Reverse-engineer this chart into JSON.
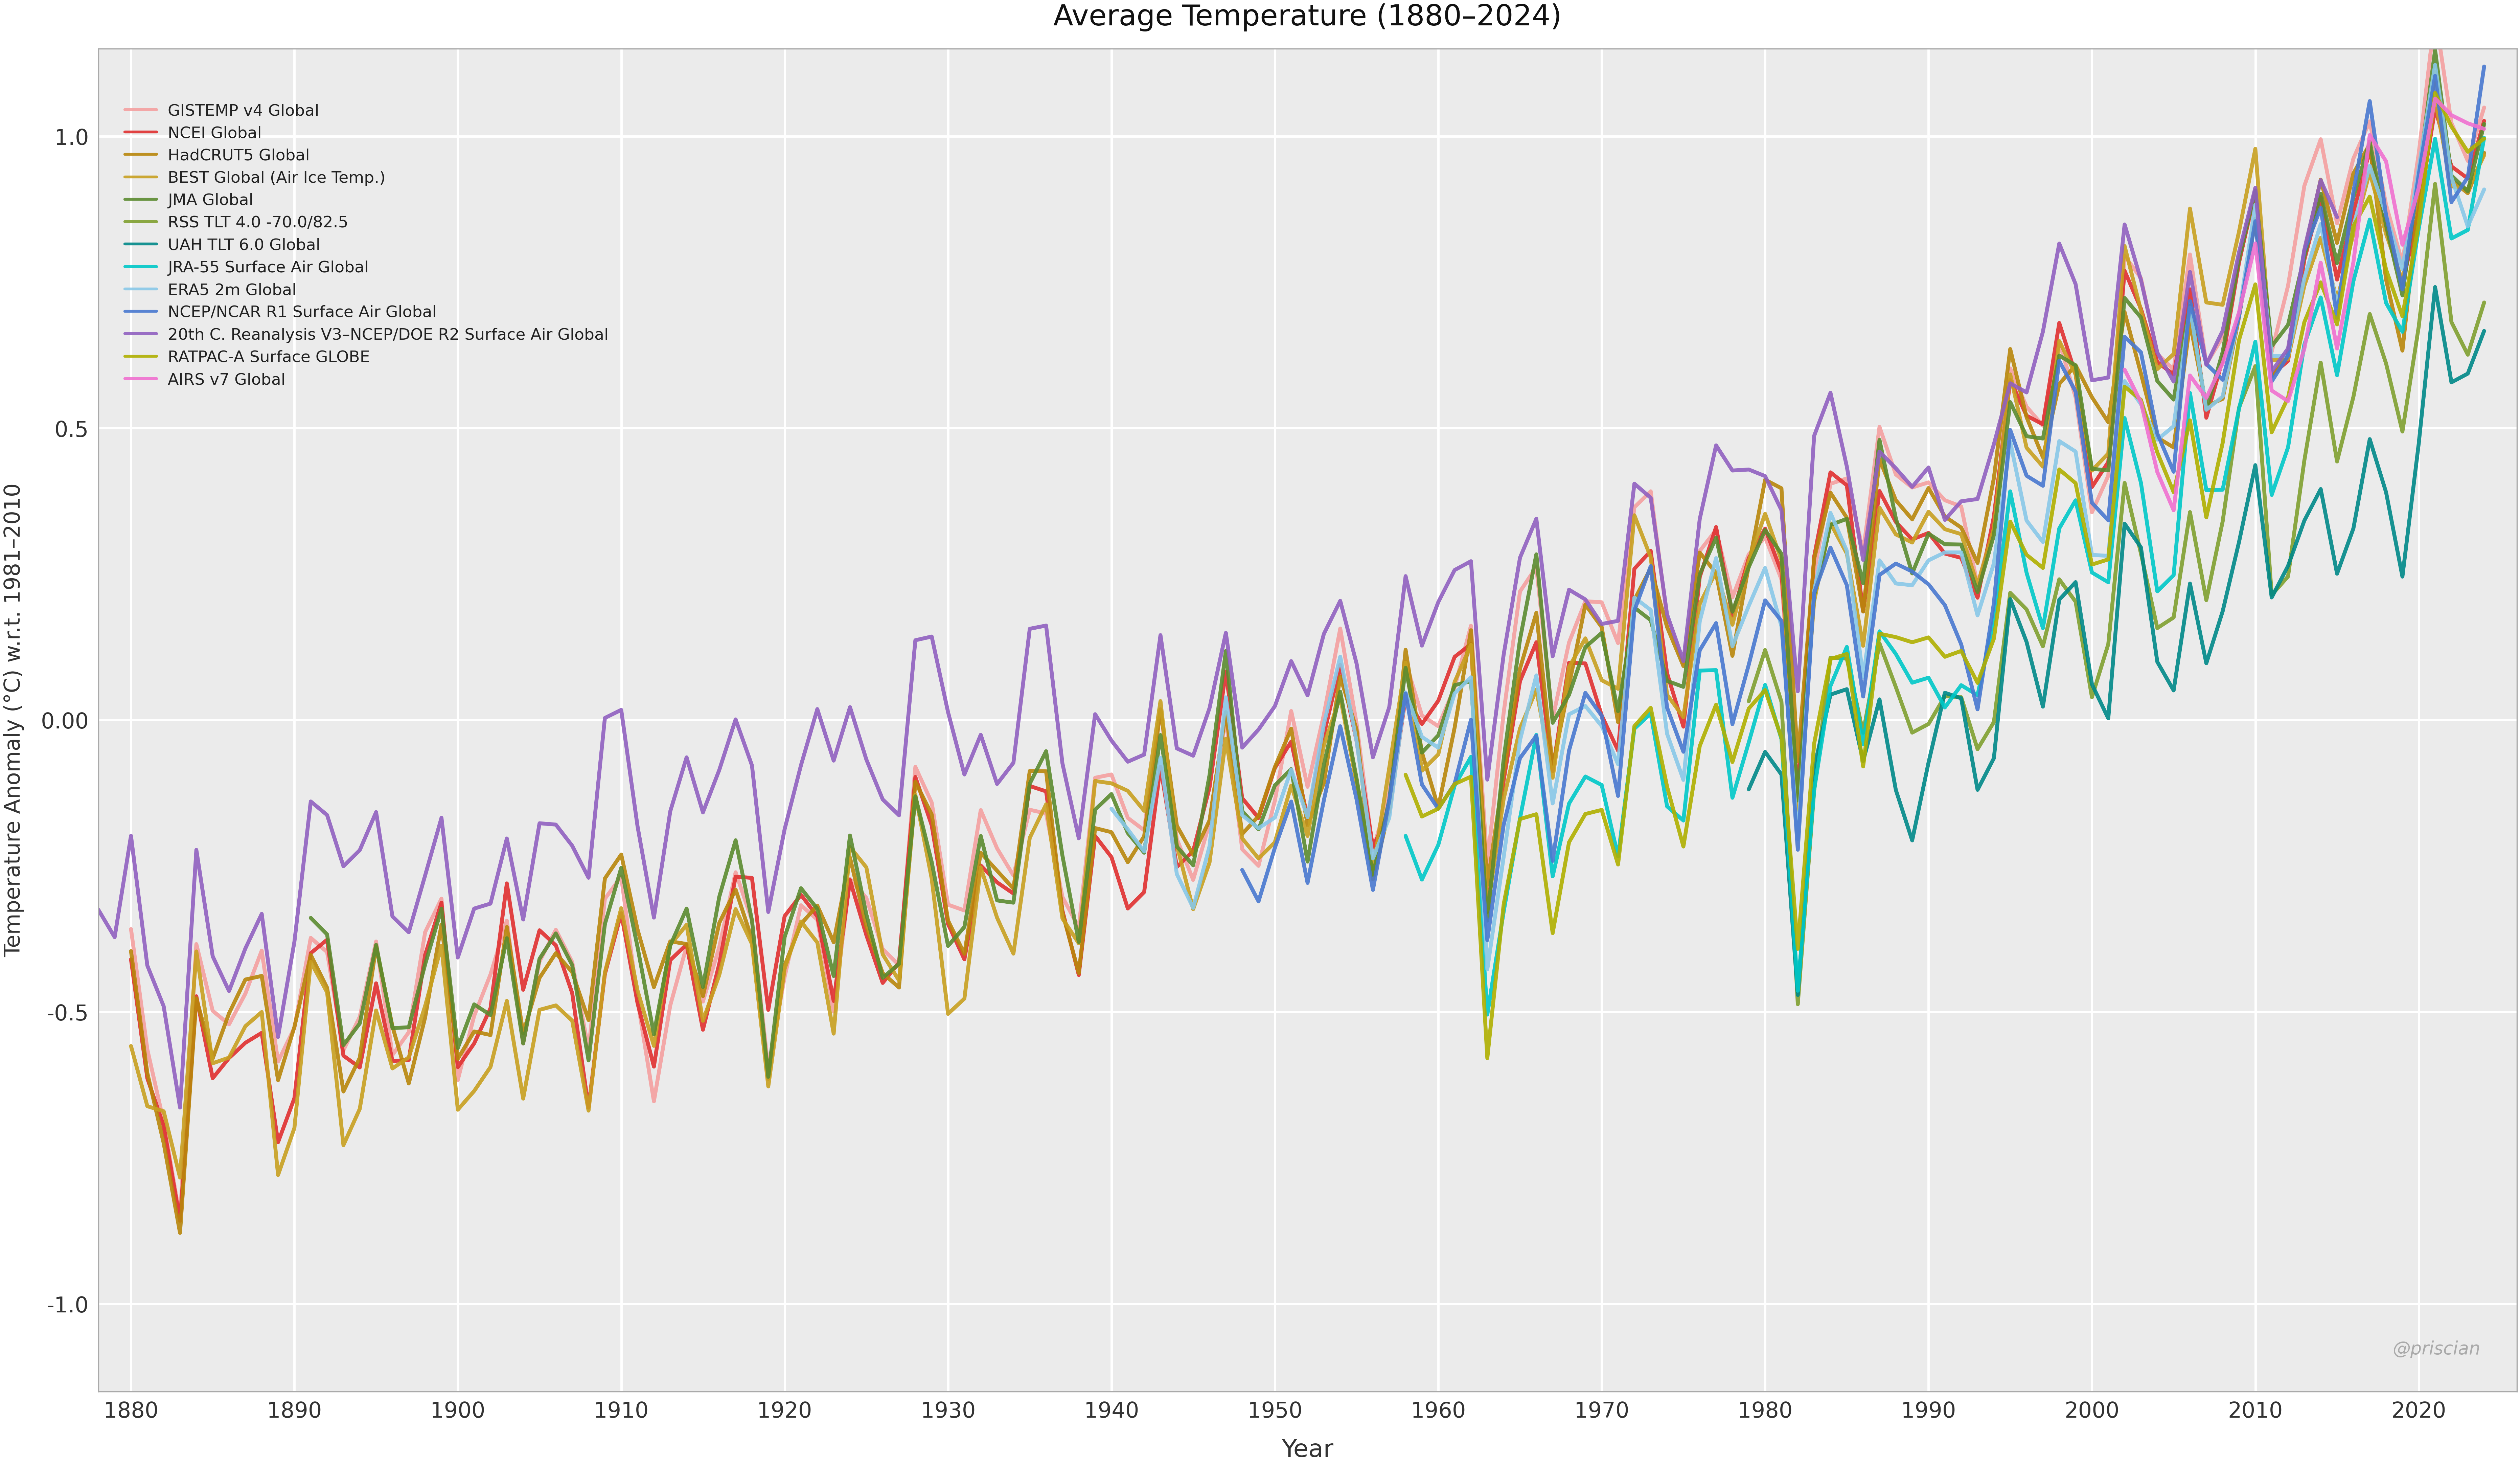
{
  "title": "Average Temperature (1880–2024)",
  "xlabel": "Year",
  "ylabel": "Temperature Anomaly (°C) w.r.t. 1981–2010",
  "xlim": [
    1878,
    2026
  ],
  "ylim": [
    -1.15,
    1.15
  ],
  "yticks": [
    -1.0,
    -0.5,
    0.0,
    0.5,
    1.0
  ],
  "ytick_labels": [
    "-1.0",
    "-0.5",
    "0.00",
    "0.5",
    "1.0"
  ],
  "xticks": [
    1880,
    1890,
    1900,
    1910,
    1920,
    1930,
    1940,
    1950,
    1960,
    1970,
    1980,
    1990,
    2000,
    2010,
    2020
  ],
  "watermark": "@priscian",
  "background_color": "#ffffff",
  "plot_bg_color": "#ebebeb",
  "grid_color": "#ffffff",
  "series": [
    {
      "label": "GISTEMP v4 Global",
      "color": "#F4A0A0",
      "lw": 1.5
    },
    {
      "label": "NCEI Global",
      "color": "#E03030",
      "lw": 1.5
    },
    {
      "label": "HadCRUT5 Global",
      "color": "#B8860B",
      "lw": 1.5
    },
    {
      "label": "BEST Global (Air Ice Temp.)",
      "color": "#C8A020",
      "lw": 1.5
    },
    {
      "label": "JMA Global",
      "color": "#5B8B2F",
      "lw": 1.5
    },
    {
      "label": "RSS TLT 4.0 -70.0/82.5",
      "color": "#80A030",
      "lw": 1.5
    },
    {
      "label": "UAH TLT 6.0 Global",
      "color": "#008888",
      "lw": 1.5
    },
    {
      "label": "JRA-55 Surface Air Global",
      "color": "#00C8C8",
      "lw": 1.5
    },
    {
      "label": "ERA5 2m Global",
      "color": "#88C8E8",
      "lw": 1.5
    },
    {
      "label": "NCEP/NCAR R1 Surface Air Global",
      "color": "#4878D0",
      "lw": 1.5
    },
    {
      "label": "20th C. Reanalysis V3–NCEP/DOE R2 Surface Air Global",
      "color": "#9060C0",
      "lw": 1.5
    },
    {
      "label": "RATPAC-A Surface GLOBE",
      "color": "#B0B000",
      "lw": 1.5
    },
    {
      "label": "AIRS v7 Global",
      "color": "#F070D0",
      "lw": 1.5
    }
  ]
}
